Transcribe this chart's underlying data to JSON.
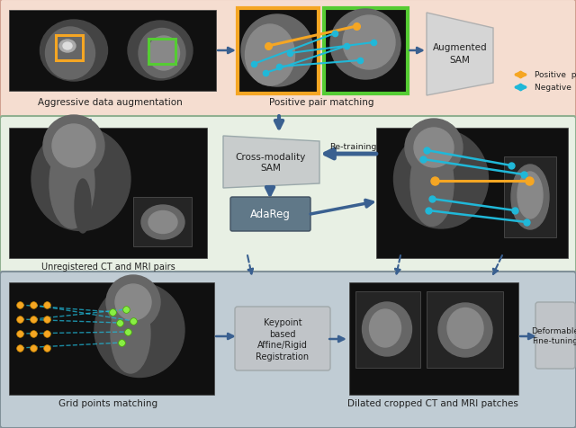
{
  "fig_width": 6.4,
  "fig_height": 4.77,
  "bg_top": "#f5ddd0",
  "bg_mid": "#e8f0e4",
  "bg_bot": "#c0ccd4",
  "orange_color": "#f5a623",
  "cyan_color": "#20b8d8",
  "arrow_blue": "#3a6090",
  "box_light_gray": "#c8cccc",
  "box_dark_blue": "#607888",
  "box_mid_gray": "#c0c4c8",
  "text_dark": "#222222",
  "ct_bg": "#101010",
  "ct_gray1": "#444444",
  "ct_gray2": "#666666",
  "ct_gray3": "#888888",
  "ct_light": "#aaaaaa",
  "positive_pairs_label": "Positive  pairs",
  "negative_pairs_label": "Negative  pairs",
  "label_aug": "Aggressive data augmentation",
  "label_pair": "Positive pair matching",
  "label_sam": "Augmented\nSAM",
  "label_unreg": "Unregistered CT and MRI pairs",
  "label_cross": "Cross-modality\nSAM",
  "label_retrain": "Re-training",
  "label_adareg": "AdaReg",
  "label_grid": "Grid points matching",
  "label_keypoint": "Keypoint\nbased\nAffine/Rigid\nRegistration",
  "label_dilated": "Dilated cropped CT and MRI patches",
  "label_deform": "Deformable\nFine-tuning"
}
